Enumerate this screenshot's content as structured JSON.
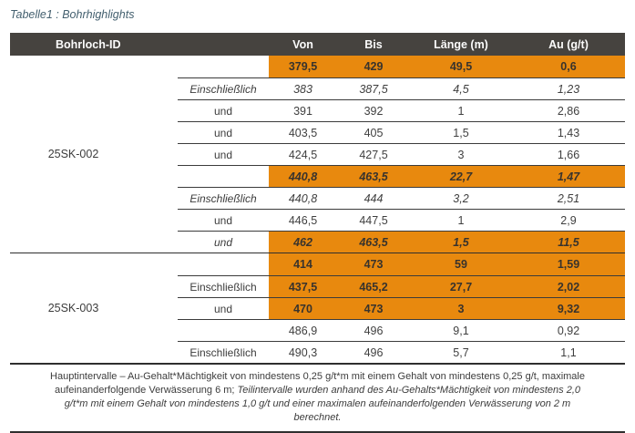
{
  "title": "Tabelle1 : Bohrhighlights",
  "table": {
    "headers": [
      "Bohrloch-ID",
      "Von",
      "Bis",
      "Länge (m)",
      "Au (g/t)"
    ],
    "sections": [
      {
        "id": "25SK-002",
        "rows": [
          {
            "qualifier": "",
            "von": "379,5",
            "bis": "429",
            "laenge": "49,5",
            "au": "0,6"
          },
          {
            "qualifier": "Einschließlich",
            "von": "383",
            "bis": "387,5",
            "laenge": "4,5",
            "au": "1,23"
          },
          {
            "qualifier": "und",
            "von": "391",
            "bis": "392",
            "laenge": "1",
            "au": "2,86"
          },
          {
            "qualifier": "und",
            "von": "403,5",
            "bis": "405",
            "laenge": "1,5",
            "au": "1,43"
          },
          {
            "qualifier": "und",
            "von": "424,5",
            "bis": "427,5",
            "laenge": "3",
            "au": "1,66"
          },
          {
            "qualifier": "",
            "von": "440,8",
            "bis": "463,5",
            "laenge": "22,7",
            "au": "1,47"
          },
          {
            "qualifier": "Einschließlich",
            "von": "440,8",
            "bis": "444",
            "laenge": "3,2",
            "au": "2,51"
          },
          {
            "qualifier": "und",
            "von": "446,5",
            "bis": "447,5",
            "laenge": "1",
            "au": "2,9"
          },
          {
            "qualifier": "und",
            "von": "462",
            "bis": "463,5",
            "laenge": "1,5",
            "au": "11,5"
          }
        ]
      },
      {
        "id": "25SK-003",
        "rows": [
          {
            "qualifier": "",
            "von": "414",
            "bis": "473",
            "laenge": "59",
            "au": "1,59"
          },
          {
            "qualifier": "Einschließlich",
            "von": "437,5",
            "bis": "465,2",
            "laenge": "27,7",
            "au": "2,02"
          },
          {
            "qualifier": "und",
            "von": "470",
            "bis": "473",
            "laenge": "3",
            "au": "9,32"
          },
          {
            "qualifier": "",
            "von": "486,9",
            "bis": "496",
            "laenge": "9,1",
            "au": "0,92"
          },
          {
            "qualifier": "Einschließlich",
            "von": "490,3",
            "bis": "496",
            "laenge": "5,7",
            "au": "1,1"
          }
        ]
      }
    ]
  },
  "footnote": {
    "normal": "Hauptintervalle – Au-Gehalt*Mächtigkeit von mindestens 0,25 g/t*m mit einem Gehalt von mindestens 0,25 g/t, maximale aufeinanderfolgende Verwässerung 6 m; ",
    "italic": "Teilintervalle wurden anhand des Au-Gehalts*Mächtigkeit von mindestens 2,0 g/t*m mit einem Gehalt von mindestens 1,0 g/t und einer maximalen aufeinanderfolgenden Verwässerung von 2 m berechnet."
  },
  "colors": {
    "highlight_orange": "#E8890E",
    "header_background": "#46433F",
    "header_text": "#FBFBFB",
    "body_text": "#3C3C3C",
    "title_text": "#44606F",
    "grid_line": "#3B3B3B"
  }
}
